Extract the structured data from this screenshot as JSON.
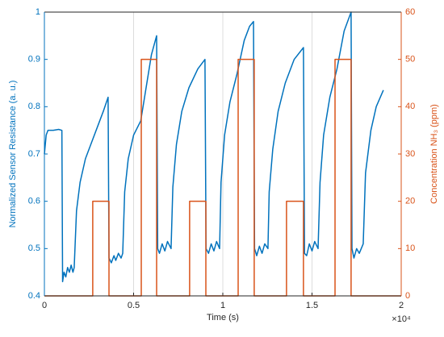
{
  "chart_data": {
    "type": "line",
    "x_label": "Time (s)",
    "x_exponent": "×10⁴",
    "y_label": "Normalized Sensor Resistance (a. u.)",
    "y2_label": "Concentration NH₃ (ppm)",
    "xlim": [
      0,
      2
    ],
    "xticks": [
      0,
      0.5,
      1,
      1.5,
      2
    ],
    "ylim": [
      0.4,
      1
    ],
    "yticks": [
      0.4,
      0.5,
      0.6,
      0.7,
      0.8,
      0.9,
      1
    ],
    "y2lim": [
      0,
      60
    ],
    "y2ticks": [
      0,
      10,
      20,
      30,
      40,
      50,
      60
    ],
    "grid": "x",
    "series": [
      {
        "color": "#0072BD",
        "axis": "y",
        "x": [
          0,
          0.01,
          0.02,
          0.05,
          0.08,
          0.098,
          0.102,
          0.11,
          0.12,
          0.13,
          0.14,
          0.15,
          0.16,
          0.167,
          0.18,
          0.2,
          0.23,
          0.26,
          0.3,
          0.33,
          0.357,
          0.362,
          0.375,
          0.39,
          0.4,
          0.415,
          0.43,
          0.439,
          0.45,
          0.47,
          0.5,
          0.54,
          0.57,
          0.6,
          0.629,
          0.635,
          0.645,
          0.66,
          0.675,
          0.69,
          0.71,
          0.72,
          0.74,
          0.77,
          0.81,
          0.86,
          0.9,
          0.906,
          0.92,
          0.935,
          0.95,
          0.965,
          0.982,
          0.99,
          1.01,
          1.04,
          1.08,
          1.12,
          1.15,
          1.172,
          1.178,
          1.19,
          1.205,
          1.22,
          1.235,
          1.253,
          1.26,
          1.28,
          1.31,
          1.35,
          1.4,
          1.452,
          1.458,
          1.47,
          1.485,
          1.5,
          1.515,
          1.534,
          1.545,
          1.565,
          1.6,
          1.64,
          1.68,
          1.719,
          1.724,
          1.735,
          1.75,
          1.765,
          1.787,
          1.8,
          1.83,
          1.86,
          1.9
        ],
        "values": [
          0.7,
          0.74,
          0.75,
          0.75,
          0.752,
          0.75,
          0.43,
          0.45,
          0.44,
          0.46,
          0.45,
          0.465,
          0.45,
          0.46,
          0.58,
          0.64,
          0.69,
          0.72,
          0.76,
          0.79,
          0.82,
          0.48,
          0.47,
          0.485,
          0.475,
          0.49,
          0.48,
          0.49,
          0.62,
          0.69,
          0.74,
          0.77,
          0.84,
          0.91,
          0.95,
          0.5,
          0.49,
          0.51,
          0.495,
          0.515,
          0.5,
          0.63,
          0.72,
          0.79,
          0.84,
          0.88,
          0.9,
          0.5,
          0.49,
          0.51,
          0.495,
          0.515,
          0.5,
          0.64,
          0.74,
          0.81,
          0.87,
          0.94,
          0.97,
          0.98,
          0.5,
          0.485,
          0.505,
          0.49,
          0.51,
          0.5,
          0.62,
          0.71,
          0.79,
          0.85,
          0.9,
          0.925,
          0.49,
          0.485,
          0.51,
          0.495,
          0.515,
          0.5,
          0.64,
          0.74,
          0.82,
          0.88,
          0.96,
          1.0,
          0.5,
          0.48,
          0.5,
          0.49,
          0.51,
          0.66,
          0.75,
          0.8,
          0.835
        ]
      },
      {
        "color": "#D95319",
        "axis": "y2",
        "x": [
          0,
          0.271,
          0.271,
          0.362,
          0.362,
          0.543,
          0.543,
          0.629,
          0.629,
          0.814,
          0.814,
          0.905,
          0.905,
          1.086,
          1.086,
          1.176,
          1.176,
          1.357,
          1.357,
          1.452,
          1.452,
          1.629,
          1.629,
          1.719,
          1.719,
          2
        ],
        "values": [
          0,
          0,
          20,
          20,
          0,
          0,
          50,
          50,
          0,
          0,
          20,
          20,
          0,
          0,
          50,
          50,
          0,
          0,
          20,
          20,
          0,
          0,
          50,
          50,
          0,
          0
        ]
      }
    ]
  }
}
